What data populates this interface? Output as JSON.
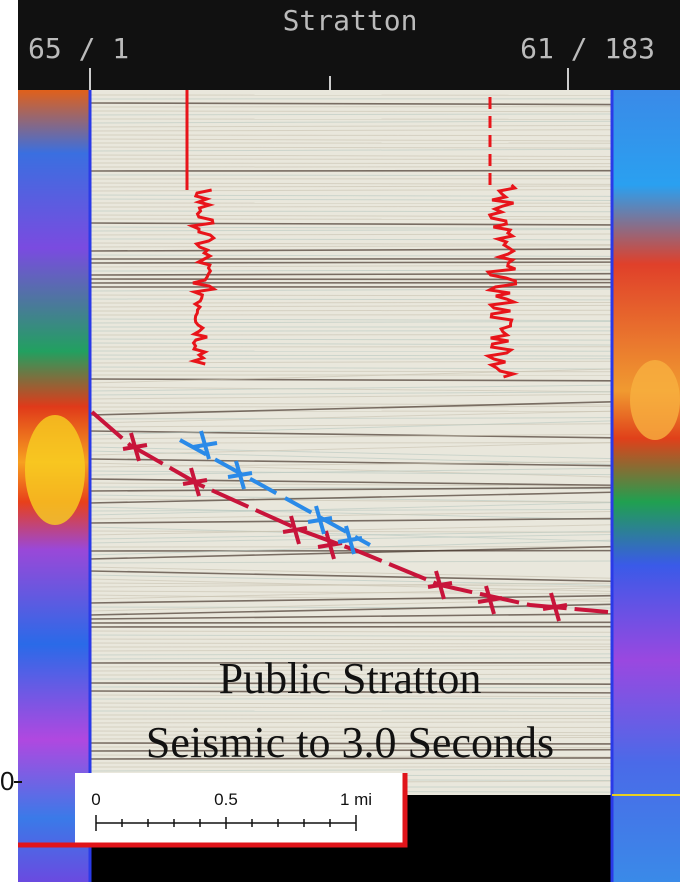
{
  "header": {
    "title": "Stratton",
    "left_label": "65 / 1",
    "right_label": "61 / 183"
  },
  "caption": {
    "line1": "Public Stratton",
    "line2": "Seismic to 3.0 Seconds"
  },
  "scale_bar": {
    "labels": [
      "0",
      "0.5",
      "1 mi"
    ]
  },
  "depth_label": "0"
}
